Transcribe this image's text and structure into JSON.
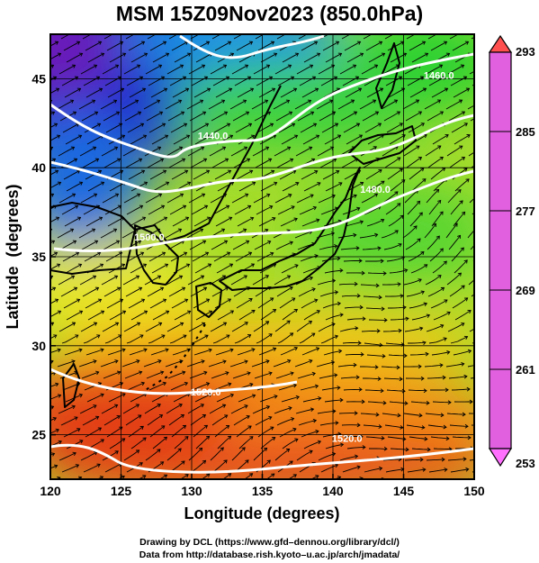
{
  "title": "MSM 15Z09Nov2023 (850.0hPa)",
  "x_axis": {
    "label": "Longitude (degrees)",
    "min": 120,
    "max": 150,
    "ticks": [
      120,
      125,
      130,
      135,
      140,
      145,
      150
    ]
  },
  "y_axis": {
    "label": "Latitude  (degrees)",
    "min": 22.5,
    "max": 47.5,
    "ticks": [
      25,
      30,
      35,
      40,
      45
    ]
  },
  "colorbar": {
    "min": 253,
    "max": 293,
    "ticks": [
      253,
      261,
      269,
      277,
      285,
      293
    ],
    "colors": [
      "#e060e0",
      "#8a2be2",
      "#1a1adc",
      "#1e7ae6",
      "#00c8c8",
      "#19c86e",
      "#32d232",
      "#a0dc28",
      "#e6e628",
      "#f5b400",
      "#f07814",
      "#e63c14",
      "#ff7070"
    ]
  },
  "contours": {
    "color": "#ffffff",
    "labels": [
      {
        "text": "1440.0",
        "lon": 131.5,
        "lat": 41.6
      },
      {
        "text": "1500.0",
        "lon": 127.0,
        "lat": 35.9
      },
      {
        "text": "1520.0",
        "lon": 131.0,
        "lat": 27.2
      },
      {
        "text": "1520.0",
        "lon": 141.0,
        "lat": 24.6
      },
      {
        "text": "1480.0",
        "lon": 143.0,
        "lat": 38.6
      },
      {
        "text": "1460.0",
        "lon": 147.5,
        "lat": 45.0
      }
    ]
  },
  "credits": {
    "line1": "Drawing by DCL (https://www.gfd–dennou.org/library/dcl/)",
    "line2": "Data from http://database.rish.kyoto–u.ac.jp/arch/jmadata/"
  }
}
